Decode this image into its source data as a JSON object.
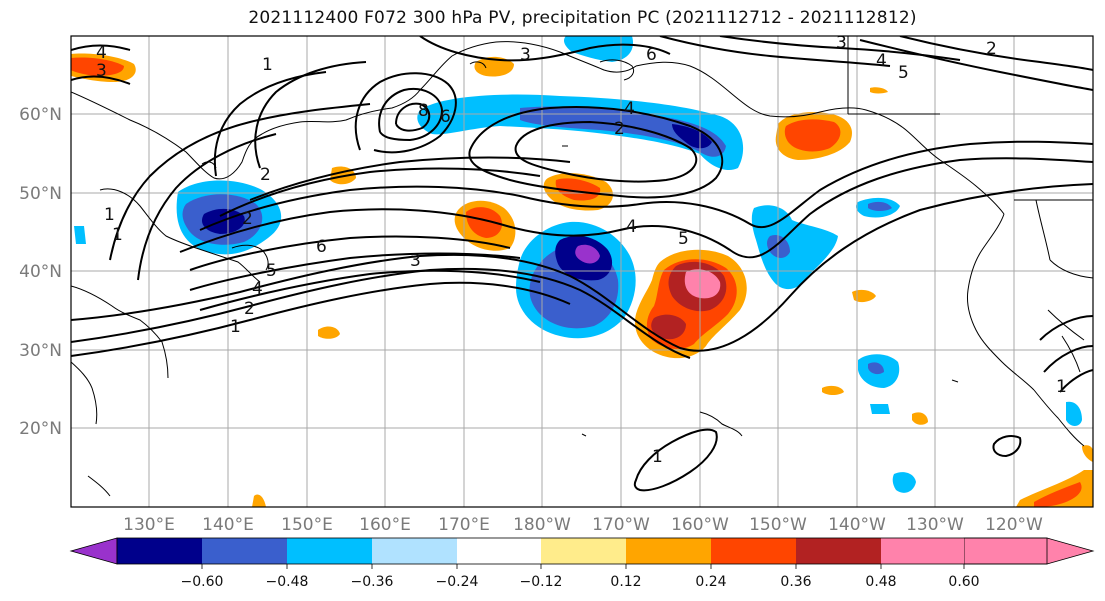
{
  "title": "2021112400 F072 300 hPa PV, precipitation PC (2021112712 - 2021112812)",
  "lat_labels": [
    "60°N",
    "50°N",
    "40°N",
    "30°N",
    "20°N"
  ],
  "lon_labels": [
    "130°E",
    "140°E",
    "150°E",
    "160°E",
    "170°E",
    "180°W",
    "170°W",
    "160°W",
    "150°W",
    "140°W",
    "130°W",
    "120°W"
  ],
  "colorbar": {
    "colors": [
      "#9932cc",
      "#00008b",
      "#3a5fcd",
      "#00bfff",
      "#b0e2ff",
      "#ffffff",
      "#ffec8b",
      "#ffa500",
      "#ff4500",
      "#b22222",
      "#ff82ab"
    ],
    "tick_labels": [
      "−0.60",
      "−0.48",
      "−0.36",
      "−0.24",
      "−0.12",
      "0.12",
      "0.24",
      "0.36",
      "0.48",
      "0.60"
    ]
  },
  "contour_labels": [
    "4",
    "3",
    "3",
    "6",
    "3",
    "4",
    "5",
    "2",
    "1",
    "8",
    "6",
    "4",
    "2",
    "2",
    "1",
    "1",
    "2",
    "6",
    "5",
    "4",
    "2",
    "1",
    "3",
    "4",
    "5",
    "1",
    "1"
  ]
}
